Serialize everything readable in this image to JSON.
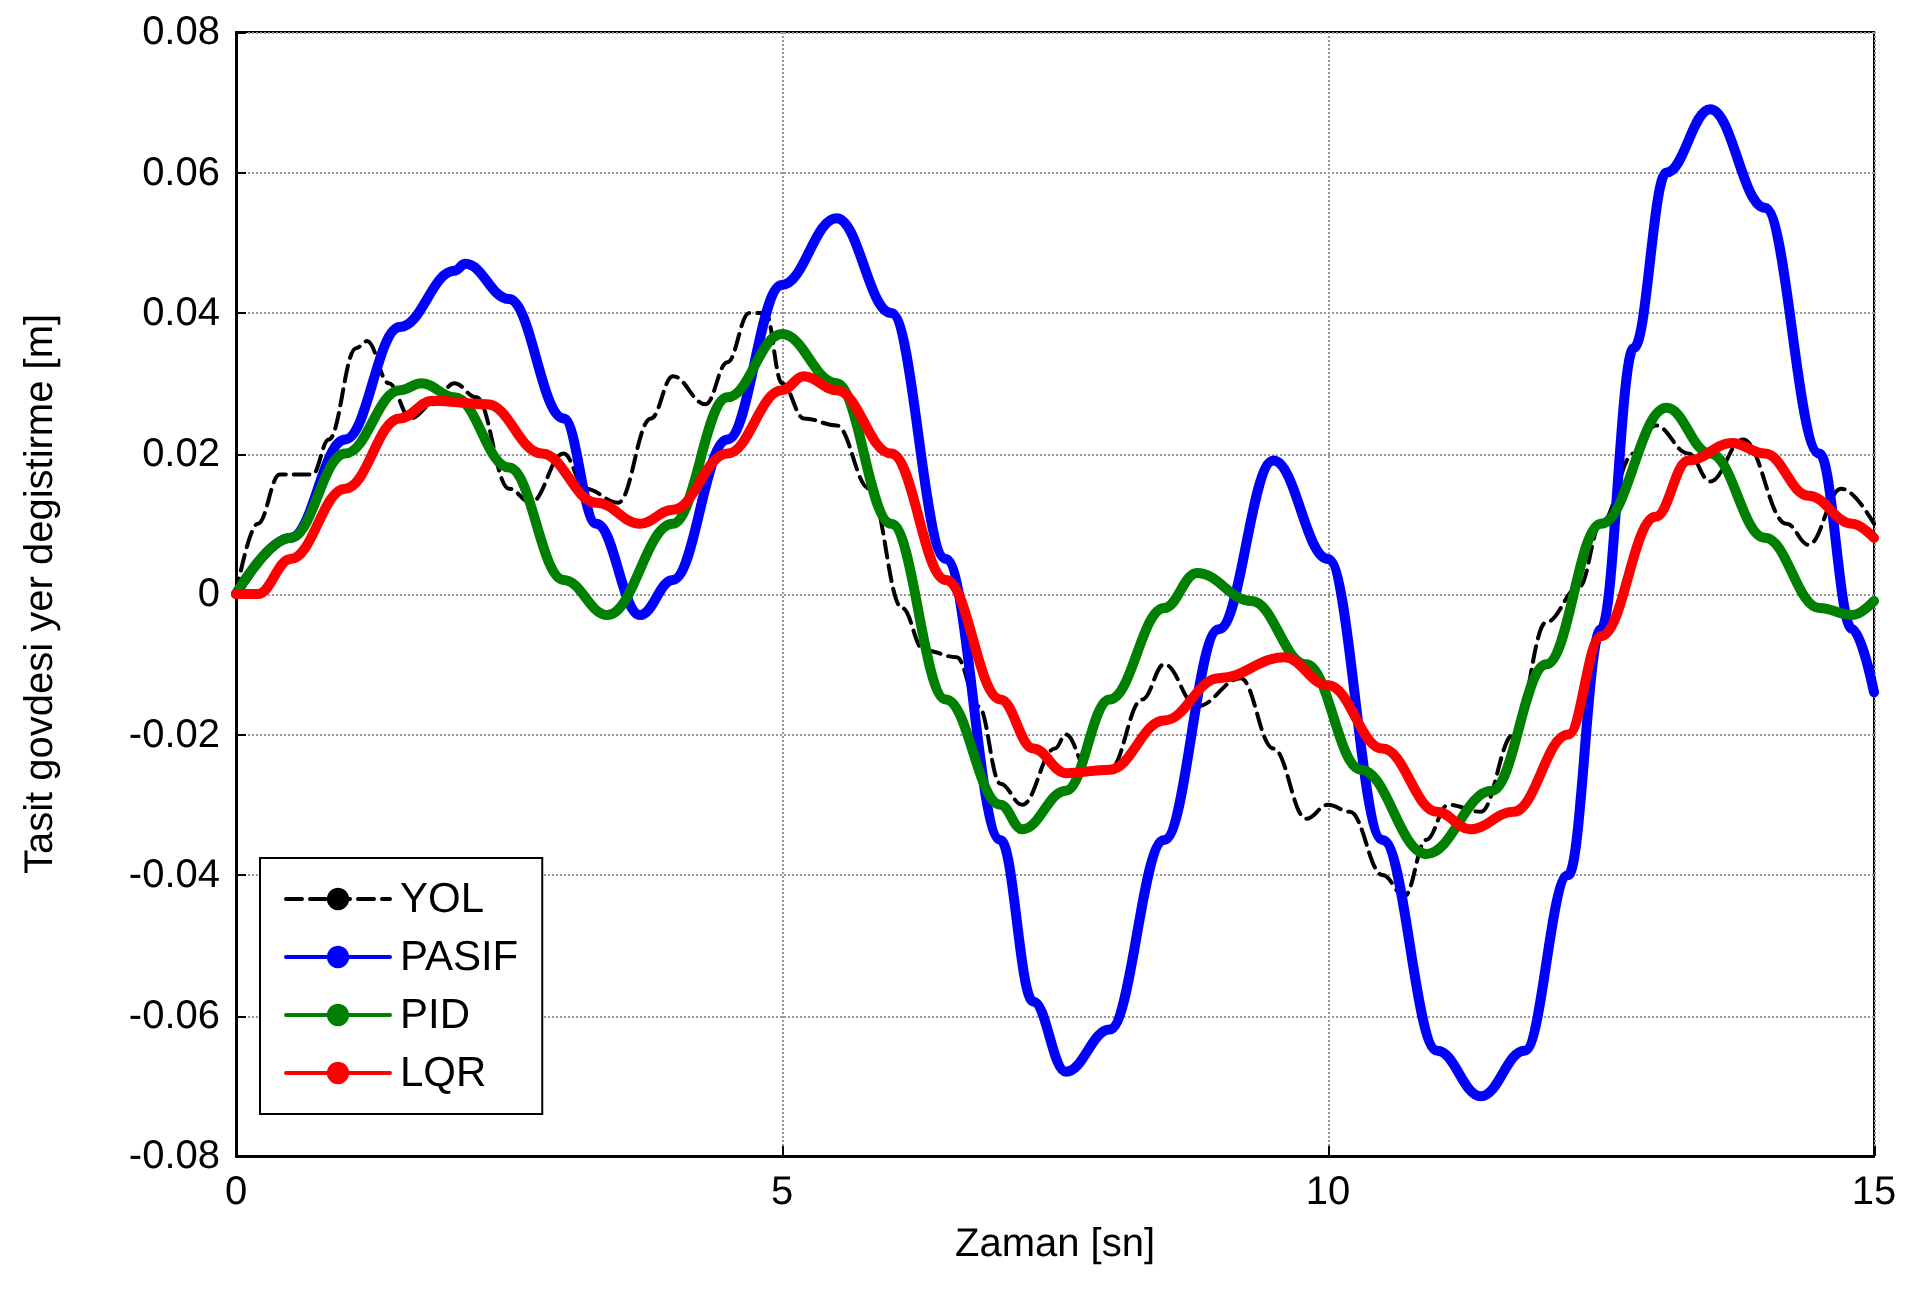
{
  "chart_data": {
    "type": "line",
    "xlabel": "Zaman [sn]",
    "ylabel": "Tasit govdesi yer degistirme [m]",
    "xlim": [
      0,
      15
    ],
    "xticks": [
      0,
      5,
      10,
      15
    ],
    "ylim": [
      -0.08,
      0.08
    ],
    "yticks": [
      -0.08,
      -0.06,
      -0.04,
      -0.02,
      0,
      0.02,
      0.04,
      0.06,
      0.08
    ],
    "grid": true,
    "legend": "bottom left",
    "marker": "none",
    "series": [
      {
        "name": "YOL",
        "color": "#000000",
        "line_style": "dashed",
        "x": [
          0,
          0.2,
          0.4,
          0.7,
          0.85,
          1.1,
          1.2,
          1.4,
          1.6,
          1.8,
          2.0,
          2.2,
          2.5,
          2.7,
          3.0,
          3.2,
          3.5,
          3.8,
          4.0,
          4.3,
          4.5,
          4.7,
          4.85,
          5.0,
          5.2,
          5.5,
          5.8,
          6.1,
          6.3,
          6.6,
          6.8,
          7.0,
          7.2,
          7.5,
          7.6,
          7.8,
          8.0,
          8.3,
          8.5,
          8.8,
          9.2,
          9.5,
          9.8,
          10.0,
          10.2,
          10.5,
          10.7,
          10.9,
          11.1,
          11.4,
          11.7,
          12.0,
          12.3,
          12.5,
          12.8,
          13.0,
          13.3,
          13.5,
          13.8,
          14.2,
          14.4,
          14.7,
          15.0
        ],
        "values": [
          0,
          0.01,
          0.017,
          0.017,
          0.022,
          0.035,
          0.036,
          0.03,
          0.025,
          0.027,
          0.03,
          0.028,
          0.015,
          0.013,
          0.02,
          0.015,
          0.013,
          0.025,
          0.031,
          0.027,
          0.033,
          0.04,
          0.04,
          0.03,
          0.025,
          0.024,
          0.015,
          -0.002,
          -0.008,
          -0.009,
          -0.016,
          -0.027,
          -0.03,
          -0.022,
          -0.02,
          -0.025,
          -0.025,
          -0.015,
          -0.01,
          -0.016,
          -0.012,
          -0.022,
          -0.032,
          -0.03,
          -0.031,
          -0.04,
          -0.043,
          -0.035,
          -0.03,
          -0.031,
          -0.02,
          -0.004,
          0.001,
          0.01,
          0.02,
          0.024,
          0.02,
          0.016,
          0.022,
          0.01,
          0.007,
          0.015,
          0.01
        ]
      },
      {
        "name": "PASIF",
        "color": "#0000ff",
        "line_style": "solid",
        "x": [
          0,
          0.5,
          1.0,
          1.5,
          2.0,
          2.1,
          2.5,
          3.0,
          3.3,
          3.7,
          4.0,
          4.5,
          5.0,
          5.5,
          6.0,
          6.5,
          7.0,
          7.3,
          7.6,
          8.0,
          8.5,
          9.0,
          9.5,
          10.0,
          10.5,
          11.0,
          11.4,
          11.8,
          12.2,
          12.5,
          12.8,
          13.1,
          13.5,
          14.0,
          14.5,
          14.8,
          15.0
        ],
        "values": [
          0,
          0.008,
          0.022,
          0.038,
          0.046,
          0.047,
          0.042,
          0.025,
          0.01,
          -0.003,
          0.002,
          0.022,
          0.044,
          0.0535,
          0.04,
          0.005,
          -0.035,
          -0.058,
          -0.068,
          -0.062,
          -0.035,
          -0.005,
          0.019,
          0.005,
          -0.035,
          -0.065,
          -0.0715,
          -0.065,
          -0.04,
          -0.005,
          0.035,
          0.06,
          0.069,
          0.055,
          0.02,
          -0.005,
          -0.014
        ]
      },
      {
        "name": "PID",
        "color": "#008000",
        "line_style": "solid",
        "x": [
          0,
          0.5,
          1.0,
          1.5,
          1.7,
          2.0,
          2.5,
          3.0,
          3.4,
          4.0,
          4.5,
          5.0,
          5.5,
          6.0,
          6.5,
          7.0,
          7.2,
          7.6,
          8.0,
          8.5,
          8.8,
          9.3,
          9.8,
          10.3,
          10.9,
          11.5,
          12.0,
          12.5,
          13.1,
          13.5,
          14.0,
          14.5,
          14.8,
          15.0
        ],
        "values": [
          0,
          0.008,
          0.02,
          0.029,
          0.03,
          0.028,
          0.018,
          0.002,
          -0.003,
          0.01,
          0.028,
          0.037,
          0.03,
          0.01,
          -0.015,
          -0.03,
          -0.0335,
          -0.028,
          -0.015,
          -0.002,
          0.003,
          -0.001,
          -0.01,
          -0.025,
          -0.037,
          -0.028,
          -0.01,
          0.01,
          0.0265,
          0.02,
          0.008,
          -0.002,
          -0.003,
          -0.001
        ]
      },
      {
        "name": "LQR",
        "color": "#ff0000",
        "line_style": "solid",
        "x": [
          0,
          0.2,
          0.5,
          1.0,
          1.5,
          1.8,
          2.3,
          2.8,
          3.3,
          3.7,
          4.0,
          4.5,
          5.0,
          5.2,
          5.5,
          6.0,
          6.5,
          7.0,
          7.3,
          7.6,
          8.0,
          8.5,
          9.0,
          9.6,
          10.0,
          10.5,
          11.0,
          11.3,
          11.7,
          12.2,
          12.5,
          13.0,
          13.3,
          13.7,
          14.0,
          14.4,
          14.8,
          15.0
        ],
        "values": [
          0,
          0,
          0.005,
          0.015,
          0.025,
          0.0275,
          0.027,
          0.02,
          0.013,
          0.01,
          0.012,
          0.02,
          0.029,
          0.031,
          0.029,
          0.02,
          0.002,
          -0.015,
          -0.022,
          -0.0255,
          -0.025,
          -0.018,
          -0.012,
          -0.009,
          -0.013,
          -0.022,
          -0.031,
          -0.0335,
          -0.031,
          -0.02,
          -0.006,
          0.011,
          0.019,
          0.0215,
          0.02,
          0.014,
          0.01,
          0.008
        ]
      }
    ]
  }
}
